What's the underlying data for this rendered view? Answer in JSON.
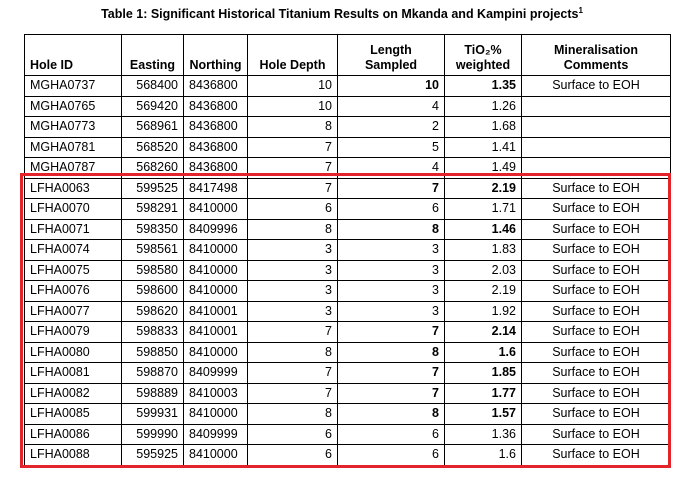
{
  "title": "Table 1: Significant Historical Titanium Results on Mkanda and Kampini projects",
  "title_superscript": "1",
  "table": {
    "headers": [
      "Hole ID",
      "Easting",
      "Northing",
      "Hole Depth",
      "Length Sampled",
      "TiO₂% weighted",
      "Mineralisation Comments"
    ],
    "rows": [
      {
        "cells": [
          "MGHA0737",
          568400,
          8436800,
          10,
          10,
          1.35,
          "Surface to EOH"
        ],
        "bold": true
      },
      {
        "cells": [
          "MGHA0765",
          569420,
          8436800,
          10,
          4,
          1.26,
          null
        ],
        "bold": false
      },
      {
        "cells": [
          "MGHA0773",
          568961,
          8436800,
          8,
          2,
          1.68,
          null
        ],
        "bold": false
      },
      {
        "cells": [
          "MGHA0781",
          568520,
          8436800,
          7,
          5,
          1.41,
          null
        ],
        "bold": false
      },
      {
        "cells": [
          "MGHA0787",
          568260,
          8436800,
          7,
          4,
          1.49,
          null
        ],
        "bold": false
      },
      {
        "cells": [
          "LFHA0063",
          599525,
          8417498,
          7,
          7,
          2.19,
          "Surface to EOH"
        ],
        "bold": true
      },
      {
        "cells": [
          "LFHA0070",
          598291,
          8410000,
          6,
          6,
          1.71,
          "Surface to EOH"
        ],
        "bold": false
      },
      {
        "cells": [
          "LFHA0071",
          598350,
          8409996,
          8,
          8,
          1.46,
          "Surface to EOH"
        ],
        "bold": true
      },
      {
        "cells": [
          "LFHA0074",
          598561,
          8410000,
          3,
          3,
          1.83,
          "Surface to EOH"
        ],
        "bold": false
      },
      {
        "cells": [
          "LFHA0075",
          598580,
          8410000,
          3,
          3,
          2.03,
          "Surface to EOH"
        ],
        "bold": false
      },
      {
        "cells": [
          "LFHA0076",
          598600,
          8410000,
          3,
          3,
          2.19,
          "Surface to EOH"
        ],
        "bold": false
      },
      {
        "cells": [
          "LFHA0077",
          598620,
          8410001,
          3,
          3,
          1.92,
          "Surface to EOH"
        ],
        "bold": false
      },
      {
        "cells": [
          "LFHA0079",
          598833,
          8410001,
          7,
          7,
          2.14,
          "Surface to EOH"
        ],
        "bold": true
      },
      {
        "cells": [
          "LFHA0080",
          598850,
          8410000,
          8,
          8,
          1.6,
          "Surface to EOH"
        ],
        "bold": true
      },
      {
        "cells": [
          "LFHA0081",
          598870,
          8409999,
          7,
          7,
          1.85,
          "Surface to EOH"
        ],
        "bold": true
      },
      {
        "cells": [
          "LFHA0082",
          598889,
          8410003,
          7,
          7,
          1.77,
          "Surface to EOH"
        ],
        "bold": true
      },
      {
        "cells": [
          "LFHA0085",
          599931,
          8410000,
          8,
          8,
          1.57,
          "Surface to EOH"
        ],
        "bold": true
      },
      {
        "cells": [
          "LFHA0086",
          599990,
          8409999,
          6,
          6,
          1.36,
          "Surface to EOH"
        ],
        "bold": false
      },
      {
        "cells": [
          "LFHA0088",
          595925,
          8410000,
          6,
          6,
          1.6,
          "Surface to EOH"
        ],
        "bold": false
      }
    ]
  }
}
